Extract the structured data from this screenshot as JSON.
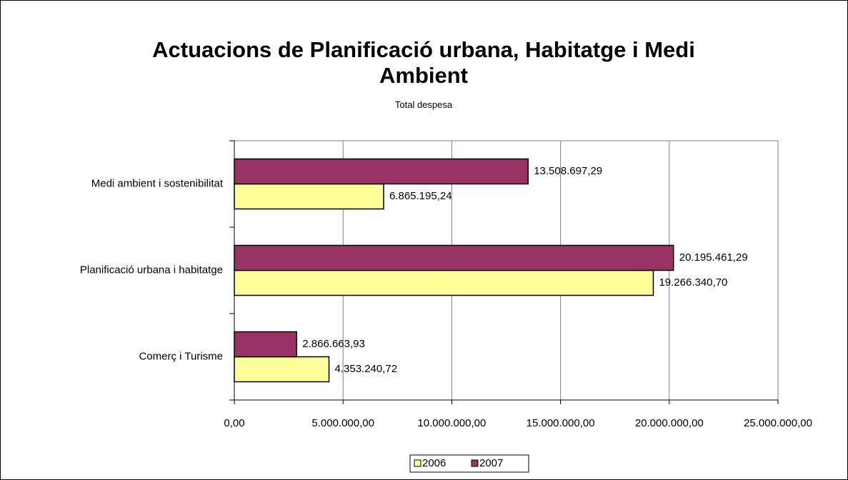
{
  "chart_data": {
    "type": "hbar",
    "title": "Actuacions de Planificació urbana, Habitatge i Medi Ambient",
    "subtitle": "Total despesa",
    "categories": [
      "Medi ambient i sostenibilitat",
      "Planificació urbana i habitatge",
      "Comerç i Turisme"
    ],
    "series": [
      {
        "name": "2006",
        "color": "#ffff99",
        "values": [
          6865195.24,
          19266340.7,
          4353240.72
        ],
        "value_labels": [
          "6.865.195,24",
          "19.266.340,70",
          "4.353.240,72"
        ]
      },
      {
        "name": "2007",
        "color": "#993366",
        "values": [
          13508697.29,
          20195461.29,
          2866663.93
        ],
        "value_labels": [
          "13.508.697,29",
          "20.195.461,29",
          "2.866.663,93"
        ]
      }
    ],
    "xlim": [
      0,
      25000000
    ],
    "xticks": [
      {
        "value": 0,
        "label": "0,00"
      },
      {
        "value": 5000000,
        "label": "5.000.000,00"
      },
      {
        "value": 10000000,
        "label": "10.000.000,00"
      },
      {
        "value": 15000000,
        "label": "15.000.000,00"
      },
      {
        "value": 20000000,
        "label": "20.000.000,00"
      },
      {
        "value": 25000000,
        "label": "25.000.000,00"
      }
    ],
    "grid": true,
    "legend": "bottom"
  }
}
